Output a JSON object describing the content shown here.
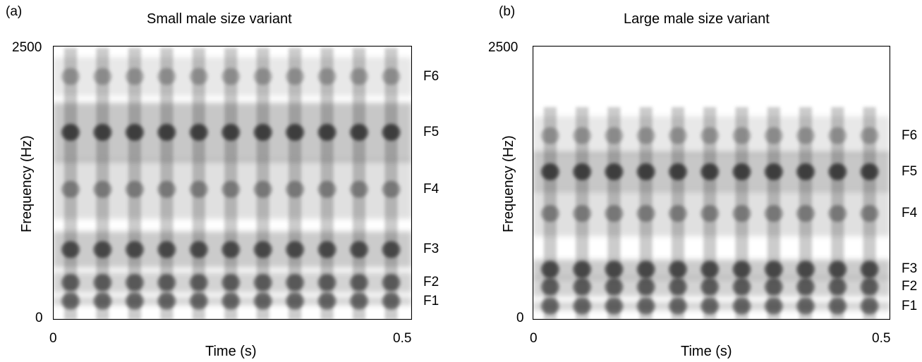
{
  "chart_data": [
    {
      "type": "heatmap",
      "panel_label": "(a)",
      "title": "Small male size variant",
      "xlabel": "Time (s)",
      "ylabel": "Frequency (Hz)",
      "xlim": [
        0,
        0.5
      ],
      "ylim": [
        0,
        2500
      ],
      "x_tick_labels": [
        "0",
        "0.5"
      ],
      "y_tick_labels": [
        "0",
        "2500"
      ],
      "colormap": "grayscale (dark = high energy)",
      "pulse_count": 11,
      "formants": [
        {
          "label": "F1",
          "hz": 170
        },
        {
          "label": "F2",
          "hz": 340
        },
        {
          "label": "F3",
          "hz": 640
        },
        {
          "label": "F4",
          "hz": 1190
        },
        {
          "label": "F5",
          "hz": 1710
        },
        {
          "label": "F6",
          "hz": 2220
        }
      ]
    },
    {
      "type": "heatmap",
      "panel_label": "(b)",
      "title": "Large male size variant",
      "xlabel": "Time (s)",
      "ylabel": "Frequency (Hz)",
      "xlim": [
        0,
        0.5
      ],
      "ylim": [
        0,
        2500
      ],
      "x_tick_labels": [
        "0",
        "0.5"
      ],
      "y_tick_labels": [
        "0",
        "2500"
      ],
      "colormap": "grayscale (dark = high energy)",
      "pulse_count": 11,
      "formants": [
        {
          "label": "F1",
          "hz": 125
        },
        {
          "label": "F2",
          "hz": 300
        },
        {
          "label": "F3",
          "hz": 460
        },
        {
          "label": "F4",
          "hz": 970
        },
        {
          "label": "F5",
          "hz": 1350
        },
        {
          "label": "F6",
          "hz": 1680
        }
      ]
    }
  ]
}
